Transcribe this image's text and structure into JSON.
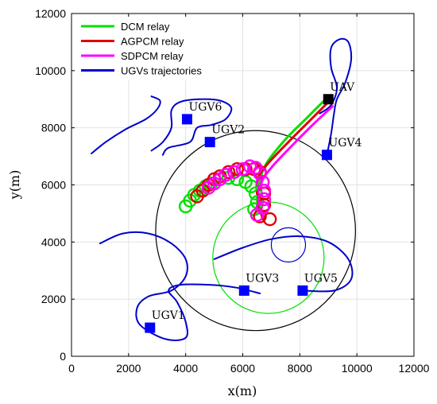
{
  "chart_data": {
    "type": "line",
    "title": "",
    "xlabel": "x(m)",
    "ylabel": "y(m)",
    "xlim": [
      0,
      12000
    ],
    "ylim": [
      0,
      12000
    ],
    "xticks": [
      0,
      2000,
      4000,
      6000,
      8000,
      10000,
      12000
    ],
    "yticks": [
      0,
      2000,
      4000,
      6000,
      8000,
      10000,
      12000
    ],
    "grid": true,
    "legend_position": "top-left",
    "legend": [
      {
        "label": "DCM relay",
        "color": "#00e000"
      },
      {
        "label": "AGPCM relay",
        "color": "#e00000"
      },
      {
        "label": "SDPCM relay",
        "color": "#ff00ff"
      },
      {
        "label": "UGVs trajectories",
        "color": "#0000cc"
      }
    ],
    "markers": [
      {
        "label": "UAV",
        "x": 9000,
        "y": 9000,
        "color": "#000000"
      },
      {
        "label": "UGV1",
        "x": 2750,
        "y": 1000,
        "color": "#0000ff"
      },
      {
        "label": "UGV2",
        "x": 4850,
        "y": 7500,
        "color": "#0000ff"
      },
      {
        "label": "UGV3",
        "x": 6050,
        "y": 2300,
        "color": "#0000ff"
      },
      {
        "label": "UGV4",
        "x": 8950,
        "y": 7050,
        "color": "#0000ff"
      },
      {
        "label": "UGV5",
        "x": 8100,
        "y": 2300,
        "color": "#0000ff"
      },
      {
        "label": "UGV6",
        "x": 4050,
        "y": 8300,
        "color": "#0000ff"
      }
    ],
    "circles": [
      {
        "cx": 6450,
        "cy": 4400,
        "r": 3500,
        "color": "#000000"
      },
      {
        "cx": 6900,
        "cy": 3450,
        "r": 1950,
        "color": "#00e000"
      },
      {
        "cx": 7600,
        "cy": 3900,
        "r": 600,
        "color": "#0000cc"
      }
    ],
    "series": [
      {
        "name": "UGVs trajectories",
        "color": "#0000cc",
        "width": 2,
        "paths": [
          [
            [
              700,
              7100
            ],
            [
              1200,
              7500
            ],
            [
              1900,
              7950
            ],
            [
              2600,
              8300
            ],
            [
              3000,
              8650
            ],
            [
              3100,
              8950
            ],
            [
              2800,
              9100
            ]
          ],
          [
            [
              2800,
              7200
            ],
            [
              3200,
              7500
            ],
            [
              3500,
              8000
            ],
            [
              3500,
              8600
            ],
            [
              3800,
              8900
            ],
            [
              4500,
              9000
            ],
            [
              5200,
              8950
            ],
            [
              5600,
              8700
            ],
            [
              5400,
              8300
            ],
            [
              4900,
              8100
            ],
            [
              4400,
              8000
            ],
            [
              4150,
              7500
            ],
            [
              3400,
              7300
            ],
            [
              3200,
              7050
            ]
          ],
          [
            [
              1000,
              3950
            ],
            [
              1800,
              4300
            ],
            [
              2700,
              4300
            ],
            [
              3500,
              3950
            ],
            [
              4000,
              3400
            ],
            [
              4000,
              2800
            ],
            [
              3500,
              2300
            ],
            [
              2700,
              2100
            ],
            [
              2300,
              1700
            ],
            [
              2400,
              1100
            ],
            [
              3300,
              600
            ],
            [
              4000,
              650
            ],
            [
              4000,
              1200
            ],
            [
              3700,
              1900
            ],
            [
              3400,
              2300
            ],
            [
              3800,
              2500
            ],
            [
              4900,
              2500
            ],
            [
              5800,
              2400
            ],
            [
              6600,
              2200
            ]
          ],
          [
            [
              5000,
              3400
            ],
            [
              6000,
              3800
            ],
            [
              7000,
              4100
            ],
            [
              8000,
              4200
            ],
            [
              9000,
              4000
            ],
            [
              9700,
              3400
            ],
            [
              9800,
              2700
            ],
            [
              9200,
              2300
            ],
            [
              8100,
              2300
            ]
          ],
          [
            [
              8700,
              8500
            ],
            [
              9100,
              8800
            ],
            [
              9300,
              9400
            ],
            [
              9100,
              10100
            ],
            [
              9100,
              10800
            ],
            [
              9400,
              11100
            ],
            [
              9700,
              11000
            ],
            [
              9800,
              10400
            ],
            [
              9600,
              9600
            ],
            [
              9300,
              9000
            ],
            [
              9200,
              8500
            ],
            [
              9100,
              7800
            ],
            [
              8950,
              7050
            ]
          ]
        ]
      },
      {
        "name": "DCM relay",
        "color": "#00e000",
        "width": 3,
        "paths": [
          [
            [
              8900,
              9000
            ],
            [
              8200,
              8300
            ],
            [
              7500,
              7600
            ],
            [
              6800,
              6700
            ],
            [
              6550,
              5900
            ],
            [
              6500,
              5300
            ],
            [
              6450,
              5000
            ]
          ]
        ]
      },
      {
        "name": "AGPCM relay",
        "color": "#e00000",
        "width": 3,
        "paths": [
          [
            [
              9000,
              8900
            ],
            [
              8300,
              8200
            ],
            [
              7600,
              7500
            ],
            [
              6800,
              6650
            ],
            [
              6500,
              6100
            ],
            [
              6550,
              5400
            ],
            [
              6700,
              4800
            ]
          ]
        ]
      },
      {
        "name": "SDPCM relay",
        "color": "#ff00ff",
        "width": 3,
        "paths": [
          [
            [
              9150,
              8750
            ],
            [
              8500,
              8150
            ],
            [
              7800,
              7450
            ],
            [
              7000,
              6600
            ],
            [
              6650,
              6050
            ],
            [
              6700,
              5400
            ],
            [
              6600,
              5000
            ]
          ]
        ]
      }
    ],
    "loops": [
      {
        "series": "DCM relay",
        "color": "#00e000",
        "r": 210,
        "centers": [
          [
            4000,
            5250
          ],
          [
            4150,
            5450
          ],
          [
            4300,
            5650
          ],
          [
            4500,
            5800
          ],
          [
            4700,
            5950
          ],
          [
            4900,
            6050
          ],
          [
            5200,
            6200
          ],
          [
            5500,
            6250
          ],
          [
            5800,
            6200
          ],
          [
            6100,
            6100
          ],
          [
            6300,
            5950
          ],
          [
            6450,
            5700
          ],
          [
            6500,
            5400
          ],
          [
            6400,
            5150
          ]
        ]
      },
      {
        "series": "AGPCM relay",
        "color": "#e00000",
        "r": 210,
        "centers": [
          [
            4400,
            5600
          ],
          [
            4600,
            5800
          ],
          [
            4800,
            6000
          ],
          [
            5000,
            6200
          ],
          [
            5200,
            6300
          ],
          [
            5500,
            6450
          ],
          [
            5800,
            6550
          ],
          [
            6100,
            6550
          ],
          [
            6400,
            6550
          ],
          [
            6600,
            6450
          ],
          [
            6700,
            6100
          ],
          [
            6750,
            5700
          ],
          [
            6750,
            5300
          ],
          [
            6600,
            4900
          ],
          [
            6950,
            4800
          ]
        ]
      },
      {
        "series": "SDPCM relay",
        "color": "#ff00ff",
        "r": 210,
        "centers": [
          [
            4800,
            5900
          ],
          [
            5000,
            6050
          ],
          [
            5200,
            6200
          ],
          [
            5400,
            6350
          ],
          [
            5700,
            6450
          ],
          [
            6000,
            6550
          ],
          [
            6250,
            6650
          ],
          [
            6450,
            6600
          ],
          [
            6600,
            6400
          ],
          [
            6700,
            6100
          ],
          [
            6750,
            5800
          ],
          [
            6750,
            5500
          ],
          [
            6700,
            5200
          ],
          [
            6500,
            4950
          ]
        ]
      }
    ]
  }
}
